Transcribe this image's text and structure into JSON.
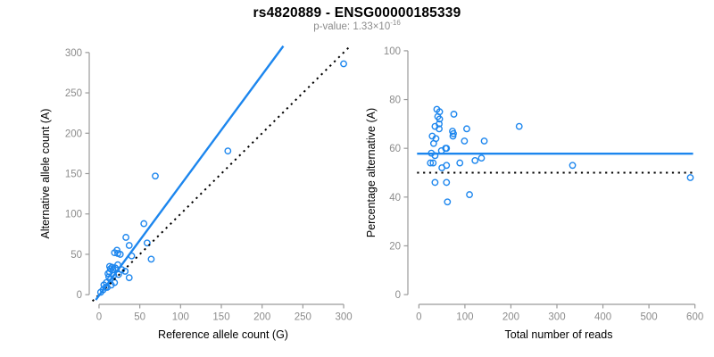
{
  "title": "rs4820889 - ENSG00000185339",
  "subtitle": {
    "text": "p-value: 1.33×10",
    "exponent": "-16"
  },
  "colors": {
    "accent_blue": "#1C86EE",
    "dotted_black": "#000000",
    "axis_gray": "#9a9a9a",
    "tick_label_gray": "#8c8c8c",
    "axis_title_black": "#000000",
    "title_black": "#000000",
    "subtitle_gray": "#8c8c8c",
    "background": "#ffffff"
  },
  "chart_data": [
    {
      "type": "scatter",
      "panel": "left",
      "xlabel": "Reference allele count (G)",
      "ylabel": "Alternative allele count (A)",
      "xlim": [
        0,
        300
      ],
      "ylim": [
        0,
        300
      ],
      "xticks": [
        0,
        50,
        100,
        150,
        200,
        250,
        300
      ],
      "yticks": [
        0,
        50,
        100,
        150,
        200,
        250,
        300
      ],
      "grid": false,
      "marker": "open-circle",
      "points": [
        [
          300,
          286
        ],
        [
          158,
          178
        ],
        [
          69,
          147
        ],
        [
          55,
          88
        ],
        [
          33,
          71
        ],
        [
          59,
          64
        ],
        [
          37,
          61
        ],
        [
          22,
          55
        ],
        [
          19,
          52
        ],
        [
          23,
          51
        ],
        [
          26,
          50
        ],
        [
          40,
          48
        ],
        [
          64,
          44
        ],
        [
          23,
          37
        ],
        [
          13,
          35
        ],
        [
          16,
          34
        ],
        [
          20,
          33
        ],
        [
          14,
          32
        ],
        [
          17,
          31
        ],
        [
          28,
          31
        ],
        [
          32,
          29
        ],
        [
          13,
          28
        ],
        [
          11,
          26
        ],
        [
          24,
          25
        ],
        [
          18,
          24
        ],
        [
          12,
          22
        ],
        [
          37,
          21
        ],
        [
          14,
          19
        ],
        [
          19,
          15
        ],
        [
          9,
          15
        ],
        [
          15,
          12
        ],
        [
          6,
          12
        ],
        [
          10,
          9
        ],
        [
          8,
          9
        ],
        [
          5,
          6
        ],
        [
          2,
          3
        ]
      ],
      "lines": [
        {
          "name": "identity",
          "style": "dotted",
          "color": "#000000",
          "x1": -8,
          "y1": -8,
          "x2": 306,
          "y2": 306
        },
        {
          "name": "regression",
          "style": "solid",
          "color": "#1C86EE",
          "x1": -4,
          "y1": -6.5,
          "x2": 226,
          "y2": 308
        }
      ]
    },
    {
      "type": "scatter",
      "panel": "right",
      "xlabel": "Total number of reads",
      "ylabel": "Percentage alternative (A)",
      "xlim": [
        0,
        600
      ],
      "ylim": [
        0,
        100
      ],
      "xticks": [
        0,
        100,
        200,
        300,
        400,
        500,
        600
      ],
      "yticks": [
        0,
        20,
        40,
        60,
        80,
        100
      ],
      "grid": false,
      "marker": "open-circle",
      "points": [
        [
          39,
          76
        ],
        [
          45,
          75
        ],
        [
          41,
          73
        ],
        [
          45,
          72
        ],
        [
          76,
          74
        ],
        [
          44,
          70
        ],
        [
          35,
          69
        ],
        [
          44,
          68
        ],
        [
          104,
          68
        ],
        [
          218,
          69
        ],
        [
          73,
          67
        ],
        [
          75,
          66
        ],
        [
          74,
          65
        ],
        [
          29,
          65
        ],
        [
          37,
          64
        ],
        [
          99,
          63
        ],
        [
          142,
          63
        ],
        [
          32,
          62
        ],
        [
          60,
          60
        ],
        [
          58,
          60
        ],
        [
          49,
          59
        ],
        [
          27,
          58
        ],
        [
          35,
          57
        ],
        [
          136,
          56
        ],
        [
          122,
          55
        ],
        [
          89,
          54
        ],
        [
          31,
          54
        ],
        [
          25,
          54
        ],
        [
          60,
          53
        ],
        [
          50,
          52
        ],
        [
          334,
          53
        ],
        [
          590,
          48
        ],
        [
          35,
          46
        ],
        [
          60,
          46
        ],
        [
          110,
          41
        ],
        [
          62,
          38
        ]
      ],
      "lines": [
        {
          "name": "fifty-percent",
          "style": "dotted",
          "color": "#000000",
          "x1": -4,
          "y1": 50,
          "x2": 600,
          "y2": 50
        },
        {
          "name": "mean-percentage",
          "style": "solid",
          "color": "#1C86EE",
          "x1": -4,
          "y1": 57.8,
          "x2": 596,
          "y2": 57.8
        }
      ]
    }
  ]
}
